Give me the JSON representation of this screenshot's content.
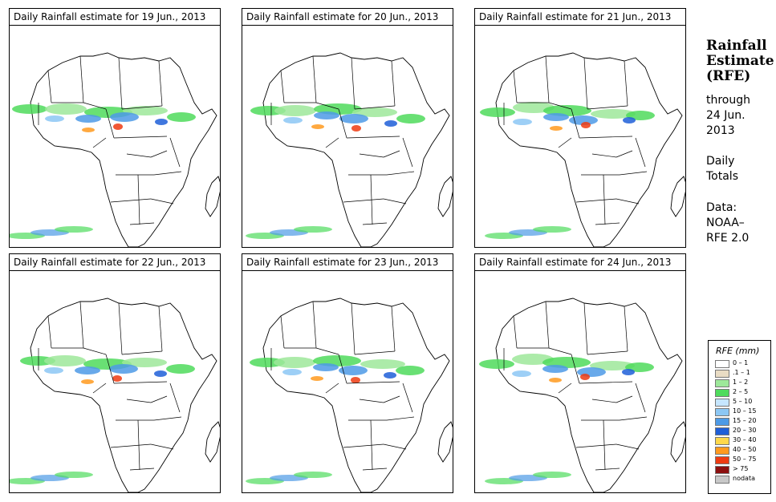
{
  "panels": [
    {
      "title": "Daily Rainfall estimate for  19 Jun., 2013"
    },
    {
      "title": "Daily Rainfall estimate for  20 Jun., 2013"
    },
    {
      "title": "Daily Rainfall estimate for  21 Jun., 2013"
    },
    {
      "title": "Daily Rainfall estimate for  22 Jun., 2013"
    },
    {
      "title": "Daily Rainfall estimate for  23 Jun., 2013"
    },
    {
      "title": "Daily Rainfall estimate for  24 Jun., 2013"
    }
  ],
  "sidebar": {
    "title_line1": "Rainfall",
    "title_line2": "Estimate",
    "title_line3": "(RFE)",
    "through_label": "through",
    "through_date": "24 Jun.",
    "through_year": "2013",
    "totals_line1": "Daily",
    "totals_line2": "Totals",
    "data_label": "Data:",
    "data_source1": "NOAA–",
    "data_source2": "RFE 2.0"
  },
  "legend": {
    "title": "RFE (mm)",
    "items": [
      {
        "label": "0 – 1",
        "color": "#ffffff"
      },
      {
        "label": ".1 – 1",
        "color": "#e9dcc4"
      },
      {
        "label": "1 – 2",
        "color": "#9de89a"
      },
      {
        "label": "2 – 5",
        "color": "#4fdb5c"
      },
      {
        "label": "5 – 10",
        "color": "#c6e6ff"
      },
      {
        "label": "10 – 15",
        "color": "#8cc7f4"
      },
      {
        "label": "15 – 20",
        "color": "#4d9ae6"
      },
      {
        "label": "20 – 30",
        "color": "#1f5fd8"
      },
      {
        "label": "30 – 40",
        "color": "#ffd84a"
      },
      {
        "label": "40 – 50",
        "color": "#ff9a1f"
      },
      {
        "label": "50 – 75",
        "color": "#ee3b12"
      },
      {
        "label": "> 75",
        "color": "#8c0f0f"
      },
      {
        "label": "nodata",
        "color": "#c8c8c8"
      }
    ]
  }
}
